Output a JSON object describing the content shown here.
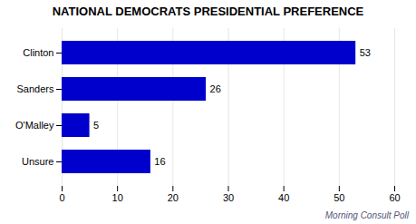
{
  "chart_data": {
    "type": "bar",
    "orientation": "horizontal",
    "title": "NATIONAL DEMOCRATS PRESIDENTIAL PREFERENCE",
    "categories": [
      "Clinton",
      "Sanders",
      "O'Malley",
      "Unsure"
    ],
    "values": [
      53,
      26,
      5,
      16
    ],
    "color": "#0000cc",
    "xlim": [
      0,
      60
    ],
    "xticks": [
      0,
      10,
      20,
      30,
      40,
      50,
      60
    ],
    "grid": true,
    "data_labels": true,
    "annotations": [
      "Morning Consult Poll"
    ]
  }
}
